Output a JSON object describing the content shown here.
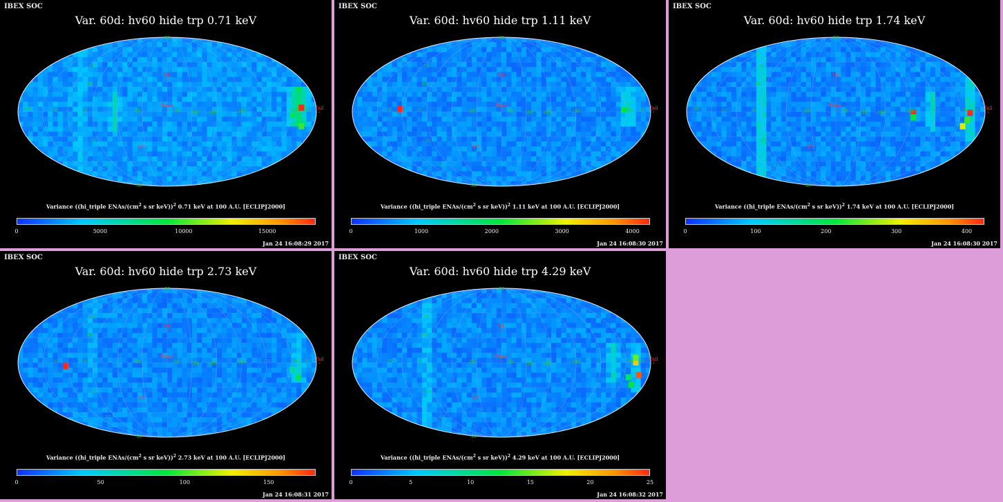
{
  "panels": [
    {
      "header": "IBEX SOC",
      "title": "Var. 60d: hv60 hide trp 0.71 keV",
      "energy": "0.71 keV",
      "ticks": [
        "0",
        "5000",
        "10000",
        "15000"
      ],
      "tick_values": [
        0,
        5000,
        10000,
        15000
      ],
      "max": 17900,
      "timestamp": "Jan 24 16:08:29 2017",
      "variant": 0
    },
    {
      "header": "IBEX SOC",
      "title": "Var. 60d: hv60 hide trp 1.11 keV",
      "energy": "1.11 keV",
      "ticks": [
        "0",
        "1000",
        "2000",
        "3000",
        "4000"
      ],
      "tick_values": [
        0,
        1000,
        2000,
        3000,
        4000
      ],
      "max": 4250,
      "timestamp": "Jan 24 16:08:30 2017",
      "variant": 1
    },
    {
      "header": "IBEX SOC",
      "title": "Var. 60d: hv60 hide trp 1.74 keV",
      "energy": "1.74 keV",
      "ticks": [
        "0",
        "100",
        "200",
        "300",
        "400"
      ],
      "tick_values": [
        0,
        100,
        200,
        300,
        400
      ],
      "max": 425,
      "timestamp": "Jan 24 16:08:30 2017",
      "variant": 2
    },
    {
      "header": "IBEX SOC",
      "title": "Var. 60d: hv60 hide trp 2.73 keV",
      "energy": "2.73 keV",
      "ticks": [
        "0",
        "50",
        "100",
        "150"
      ],
      "tick_values": [
        0,
        50,
        100,
        150
      ],
      "max": 178,
      "timestamp": "Jan 24 16:08:31 2017",
      "variant": 3
    },
    {
      "header": "IBEX SOC",
      "title": "Var. 60d: hv60 hide trp 4.29 keV",
      "energy": "4.29 keV",
      "ticks": [
        "0",
        "5",
        "10",
        "15",
        "20",
        "25"
      ],
      "tick_values": [
        0,
        5,
        10,
        15,
        20,
        25
      ],
      "max": 25,
      "timestamp": "Jan 24 16:08:32 2017",
      "variant": 4
    }
  ],
  "labels": {
    "var_pre": "Variance ((hi_triple ENAs/(cm",
    "var_sup1": "2",
    "var_mid": " s sr keV))",
    "var_sup2": "2",
    "var_post": " at 100 A.U. [ECLIPJ2000]",
    "nose": "Nose",
    "tail": "Tail",
    "v1": "V1",
    "v2": "V2",
    "lon": [
      "60",
      "30",
      "0",
      "-60",
      "-90",
      "-120",
      "-150",
      "180",
      "150",
      "120",
      "90"
    ],
    "lat": [
      "90",
      "60",
      "30",
      "-30",
      "-60",
      "-90"
    ]
  },
  "colors": {
    "background": "#dd9dd9",
    "panel": "#000000",
    "map_base": "#1050ef",
    "marker": "#ff3333"
  }
}
